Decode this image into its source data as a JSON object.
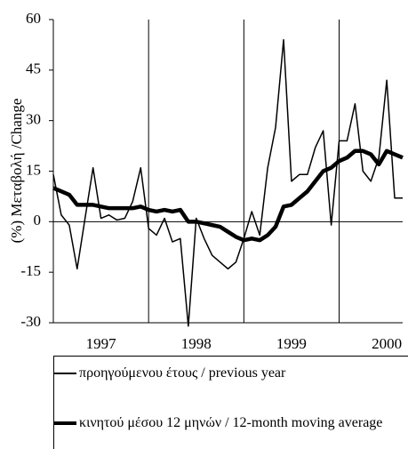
{
  "chart_data": {
    "type": "line",
    "ylabel": "(%) Μεταβολή /Change",
    "x": [
      1997,
      1997.083,
      1997.167,
      1997.25,
      1997.333,
      1997.417,
      1997.5,
      1997.583,
      1997.667,
      1997.75,
      1997.833,
      1997.917,
      1998,
      1998.083,
      1998.167,
      1998.25,
      1998.333,
      1998.417,
      1998.5,
      1998.583,
      1998.667,
      1998.75,
      1998.833,
      1998.917,
      1999,
      1999.083,
      1999.167,
      1999.25,
      1999.333,
      1999.417,
      1999.5,
      1999.583,
      1999.667,
      1999.75,
      1999.833,
      1999.917,
      2000,
      2000.083,
      2000.167,
      2000.25,
      2000.333,
      2000.417,
      2000.5,
      2000.583,
      2000.667
    ],
    "series": [
      {
        "name": "προηγούμενου έτους / previous year",
        "color": "#000000",
        "values": [
          14,
          2,
          -1,
          -14,
          1,
          16,
          1,
          2,
          0.5,
          1,
          6,
          16,
          -2,
          -4,
          1,
          -6,
          -5,
          -31,
          1,
          -5,
          -10,
          -12,
          -14,
          -12,
          -5,
          3,
          -4,
          16,
          28,
          54,
          12,
          14,
          14,
          22,
          27,
          -1,
          24,
          24,
          35,
          15,
          12,
          19,
          42,
          7,
          7
        ]
      },
      {
        "name": "κινητού μέσου 12 μηνών / 12-month moving average",
        "color": "#000000",
        "values": [
          10,
          9,
          8,
          5,
          5,
          5,
          4.5,
          4,
          4,
          4,
          4,
          4.5,
          3.5,
          3,
          3.5,
          3,
          3.5,
          0,
          0,
          -0.5,
          -1,
          -1.5,
          -3,
          -4.5,
          -5.5,
          -5,
          -5.5,
          -4,
          -1.5,
          4.5,
          5,
          7,
          9,
          12,
          15,
          16,
          18,
          19,
          21,
          21,
          20,
          17,
          21,
          20,
          19
        ]
      }
    ],
    "xlim": [
      1997,
      2000.667
    ],
    "xticks": [
      {
        "value": 1997.5,
        "label": "1997"
      },
      {
        "value": 1998.5,
        "label": "1998"
      },
      {
        "value": 1999.5,
        "label": "1999"
      },
      {
        "value": 2000.5,
        "label": "2000"
      }
    ],
    "x_dividers": [
      1998,
      1999,
      2000
    ],
    "ylim": [
      -30,
      60
    ],
    "yticks": [
      -30,
      -15,
      0,
      15,
      30,
      45,
      60
    ]
  }
}
